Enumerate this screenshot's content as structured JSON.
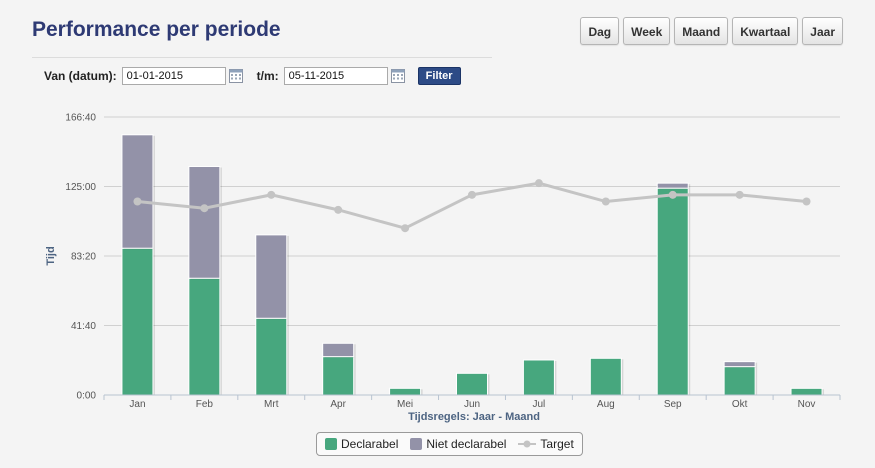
{
  "header": {
    "title": "Performance per periode"
  },
  "period_buttons": [
    "Dag",
    "Week",
    "Maand",
    "Kwartaal",
    "Jaar"
  ],
  "filter": {
    "from_label": "Van (datum):",
    "from_value": "01-01-2015",
    "to_label": "t/m:",
    "to_value": "05-11-2015",
    "button_label": "Filter"
  },
  "colors": {
    "declarabel": "#47a77e",
    "niet_declarabel": "#9392a8",
    "target": "#c4c4c4",
    "axis_title": "#4d6482"
  },
  "chart_data": {
    "type": "bar",
    "stacked": true,
    "categories": [
      "Jan",
      "Feb",
      "Mrt",
      "Apr",
      "Mei",
      "Jun",
      "Jul",
      "Aug",
      "Sep",
      "Okt",
      "Nov"
    ],
    "series": [
      {
        "name": "Declarabel",
        "type": "bar",
        "values": [
          88,
          70,
          46,
          23,
          4,
          13,
          21,
          22,
          124,
          17,
          4
        ]
      },
      {
        "name": "Niet declarabel",
        "type": "bar",
        "values": [
          68,
          67,
          50,
          8,
          0,
          0,
          0,
          0,
          3,
          3,
          0
        ]
      },
      {
        "name": "Target",
        "type": "line",
        "values": [
          116,
          112,
          120,
          111,
          100,
          120,
          127,
          116,
          120,
          120,
          116
        ]
      }
    ],
    "ylabel": "Tijd",
    "xlabel": "Tijdsregels: Jaar - Maand",
    "y_ticks": [
      0,
      41.67,
      83.33,
      125,
      166.67
    ],
    "y_tick_labels": [
      "0:00",
      "41:40",
      "83:20",
      "125:00",
      "166:40"
    ],
    "ylim": [
      0,
      166.67
    ],
    "grid": true,
    "legend_position": "bottom"
  }
}
